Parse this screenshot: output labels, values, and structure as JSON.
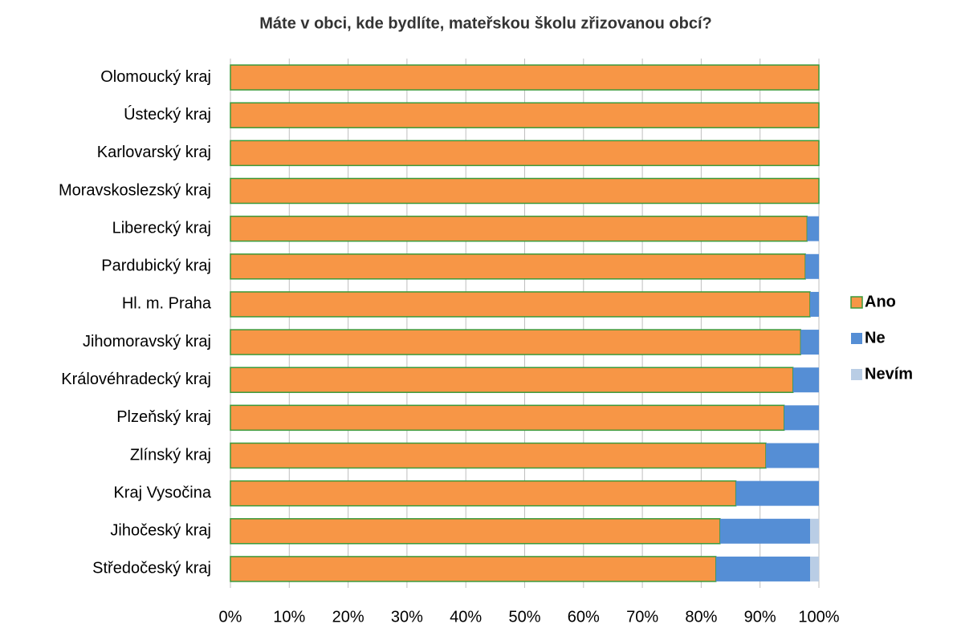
{
  "chart_data": {
    "type": "bar",
    "orientation": "horizontal",
    "stacked": true,
    "title": "Máte v obci, kde bydlíte, mateřskou školu zřizovanou obcí?",
    "categories": [
      "Olomoucký kraj",
      "Ústecký kraj",
      "Karlovarský kraj",
      "Moravskoslezský kraj",
      "Liberecký kraj",
      "Pardubický kraj",
      "Hl. m. Praha",
      "Jihomoravský kraj",
      "Královéhradecký kraj",
      "Plzeňský kraj",
      "Zlínský kraj",
      "Kraj Vysočina",
      "Jihočeský kraj",
      "Středočeský kraj"
    ],
    "series": [
      {
        "name": "Ano",
        "color": "#f79646",
        "edgecolor": "#3a9a3a",
        "values": [
          100,
          100,
          100,
          100,
          98.0,
          97.7,
          98.5,
          96.9,
          95.6,
          94.1,
          91.0,
          85.9,
          83.2,
          82.5
        ]
      },
      {
        "name": "Ne",
        "color": "#558ed5",
        "values": [
          0,
          0,
          0,
          0,
          2.0,
          2.3,
          1.5,
          3.1,
          4.4,
          5.9,
          9.0,
          14.1,
          15.3,
          16.0
        ]
      },
      {
        "name": "Nevím",
        "color": "#b9cde5",
        "values": [
          0,
          0,
          0,
          0,
          0,
          0,
          0,
          0,
          0,
          0,
          0,
          0,
          1.5,
          1.5
        ]
      }
    ],
    "xlim": [
      0,
      100
    ],
    "xticks": [
      {
        "value": 0,
        "label": "0%"
      },
      {
        "value": 10,
        "label": "10%"
      },
      {
        "value": 20,
        "label": "20%"
      },
      {
        "value": 30,
        "label": "30%"
      },
      {
        "value": 40,
        "label": "40%"
      },
      {
        "value": 50,
        "label": "50%"
      },
      {
        "value": 60,
        "label": "60%"
      },
      {
        "value": 70,
        "label": "70%"
      },
      {
        "value": 80,
        "label": "80%"
      },
      {
        "value": 90,
        "label": "90%"
      },
      {
        "value": 100,
        "label": "100%"
      }
    ],
    "grid": true,
    "legend": "right"
  }
}
